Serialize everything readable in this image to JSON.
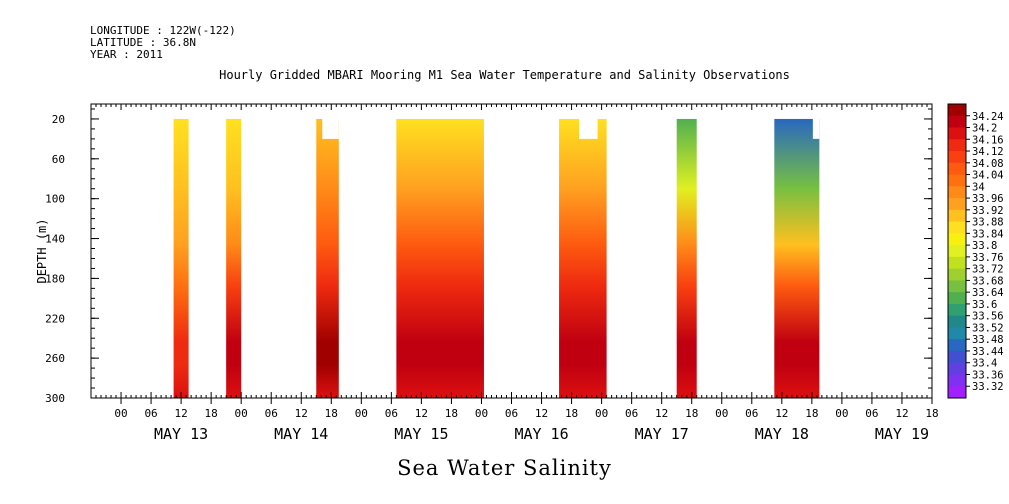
{
  "meta": {
    "longitude": "LONGITUDE : 122W(-122)",
    "latitude": "LATITUDE : 36.8N",
    "year": "YEAR : 2011"
  },
  "chart_data": {
    "type": "heatmap",
    "title": "Hourly Gridded MBARI Mooring M1 Sea Water Temperature and Salinity Observations",
    "subtitle": "Sea Water Salinity",
    "ylabel": "DEPTH (m)",
    "xlabel": "",
    "y_axis": {
      "reversed": true,
      "ylim": [
        300,
        5
      ],
      "ticks": [
        20,
        60,
        100,
        140,
        180,
        220,
        260,
        300
      ]
    },
    "x_axis": {
      "unit": "hours since May 12 18:00",
      "xlim": [
        0,
        168
      ],
      "hour_ticks": [
        "00",
        "06",
        "12",
        "18",
        "00",
        "06",
        "12",
        "18",
        "00",
        "06",
        "12",
        "18",
        "00",
        "06",
        "12",
        "18",
        "00",
        "06",
        "12",
        "18",
        "00",
        "06",
        "12",
        "18",
        "00",
        "06",
        "12",
        "18"
      ],
      "day_labels": [
        "MAY 13",
        "MAY 14",
        "MAY 15",
        "MAY 16",
        "MAY 17",
        "MAY 18",
        "MAY 19"
      ]
    },
    "colorbar": {
      "levels": [
        "34.24",
        "34.2",
        "34.16",
        "34.12",
        "34.08",
        "34.04",
        "34",
        "33.96",
        "33.92",
        "33.88",
        "33.84",
        "33.8",
        "33.76",
        "33.72",
        "33.68",
        "33.64",
        "33.6",
        "33.56",
        "33.52",
        "33.48",
        "33.44",
        "33.4",
        "33.36",
        "33.32"
      ],
      "colors": [
        "#a00000",
        "#c00010",
        "#dc1010",
        "#ee2a10",
        "#f84010",
        "#fe5a10",
        "#ff7010",
        "#ff8a18",
        "#ffa020",
        "#ffc020",
        "#ffe020",
        "#f8f010",
        "#e0f020",
        "#c0e020",
        "#a0d030",
        "#78c040",
        "#50b050",
        "#30a070",
        "#208888",
        "#2088a8",
        "#2868c0",
        "#4050d0",
        "#6040e0",
        "#8030f0",
        "#a020ff"
      ]
    },
    "segments": [
      {
        "x0": 16.5,
        "x1": 19.5,
        "top": 20,
        "top_values": {
          "start": 33.84,
          "mid": 33.92,
          "deep": 34.12,
          "bottom": 34.16
        }
      },
      {
        "x0": 27.0,
        "x1": 30.0,
        "top": 20,
        "top_values": {
          "start": 33.84,
          "mid": 33.96,
          "deep": 34.2,
          "bottom": 34.16
        }
      },
      {
        "x0": 45.0,
        "x1": 49.5,
        "top": 20,
        "notch": {
          "x0": 46.2,
          "x1": 49.5,
          "top": 40
        },
        "top_values": {
          "start": 33.88,
          "mid": 34.04,
          "deep": 34.24,
          "bottom": 34.16
        }
      },
      {
        "x0": 61.0,
        "x1": 78.5,
        "top": 20,
        "top_values": {
          "start": 33.86,
          "mid": 34.04,
          "deep": 34.2,
          "bottom": 34.16
        }
      },
      {
        "x0": 93.5,
        "x1": 103.0,
        "top": 20,
        "notch": {
          "x0": 97.5,
          "x1": 101.2,
          "top": 40,
          "blank": true
        },
        "top_values": {
          "start": 33.86,
          "mid": 34.04,
          "deep": 34.2,
          "bottom": 34.16
        }
      },
      {
        "x0": 117.0,
        "x1": 121.0,
        "top": 20,
        "top_values": {
          "start": 33.6,
          "mid": 33.96,
          "deep": 34.2,
          "bottom": 34.16
        }
      },
      {
        "x0": 136.5,
        "x1": 145.5,
        "top": 20,
        "notch": {
          "x0": 144.2,
          "x1": 145.5,
          "top": 40
        },
        "top_values": {
          "start": 33.44,
          "mid": 33.88,
          "deep": 34.2,
          "bottom": 34.16
        }
      }
    ],
    "grid": false,
    "legend": "right colorbar"
  }
}
